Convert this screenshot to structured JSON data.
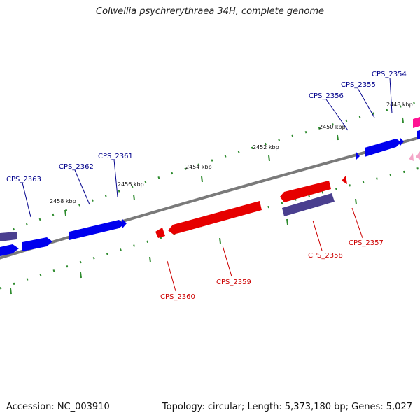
{
  "title": "Colwellia psychrerythraea 34H, complete genome",
  "footer": {
    "accession": "Accession: NC_003910",
    "summary": "Topology: circular; Length: 5,373,180 bp; Genes: 5,027"
  },
  "colors": {
    "forward_gene": "#0000ee",
    "forward_gene_alt": "#4a3f8f",
    "reverse_gene": "#e60000",
    "reverse_gene_alt": "#4a3f8f",
    "forward_label": "#00008b",
    "reverse_label": "#cc0000",
    "backbone": "#808080",
    "tick": "#2e8b2e",
    "partial_gene": "#ff1493"
  },
  "ticks": [
    {
      "label": "2448 kbp"
    },
    {
      "label": "2450 kbp"
    },
    {
      "label": "2452 kbp"
    },
    {
      "label": "2454 kbp"
    },
    {
      "label": "2456 kbp"
    },
    {
      "label": "2458 kbp"
    }
  ],
  "genes": [
    {
      "name": "CPS_2354",
      "strand": "+"
    },
    {
      "name": "CPS_2355",
      "strand": "+"
    },
    {
      "name": "CPS_2356",
      "strand": "+"
    },
    {
      "name": "CPS_2357",
      "strand": "-"
    },
    {
      "name": "CPS_2358",
      "strand": "-"
    },
    {
      "name": "CPS_2359",
      "strand": "-"
    },
    {
      "name": "CPS_2360",
      "strand": "-"
    },
    {
      "name": "CPS_2361",
      "strand": "+"
    },
    {
      "name": "CPS_2362",
      "strand": "+"
    },
    {
      "name": "CPS_2363",
      "strand": "+"
    }
  ]
}
